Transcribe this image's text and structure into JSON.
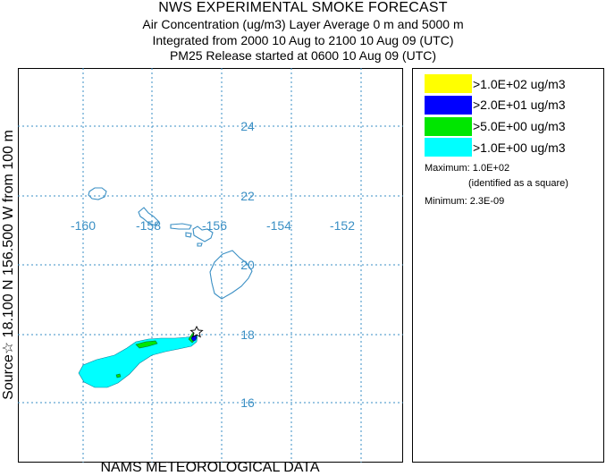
{
  "header": {
    "title": "NWS EXPERIMENTAL SMOKE FORECAST",
    "line1": "Air Concentration (ug/m3) Layer Average    0 m and  5000 m",
    "line2": "Integrated from 2000 10 Aug to 2100 10 Aug 09 (UTC)",
    "line3": "PM25 Release started at 0600 10 Aug 09 (UTC)"
  },
  "footer": {
    "data_source": "NAMS METEOROLOGICAL DATA"
  },
  "side_label": "Source☆ 18.100  N 156.500  W     from  100 m",
  "map": {
    "lon_ticks": [
      "-160",
      "-158",
      "-156",
      "-154",
      "-152"
    ],
    "lat_ticks": [
      "24",
      "22",
      "20",
      "18",
      "16"
    ],
    "grid_color": "#3a8fc4",
    "coast_color": "#3a8fc4",
    "source_marker": "star-icon"
  },
  "legend": {
    "items": [
      {
        "color": "#ffff00",
        "label": ">1.0E+02 ug/m3"
      },
      {
        "color": "#0000ff",
        "label": ">2.0E+01 ug/m3"
      },
      {
        "color": "#00e600",
        "label": ">5.0E+00 ug/m3"
      },
      {
        "color": "#00ffff",
        "label": ">1.0E+00 ug/m3"
      }
    ],
    "maximum": "Maximum: 1.0E+02",
    "maximum_note": "(identified as a square)",
    "minimum": "Minimum: 2.3E-09"
  }
}
